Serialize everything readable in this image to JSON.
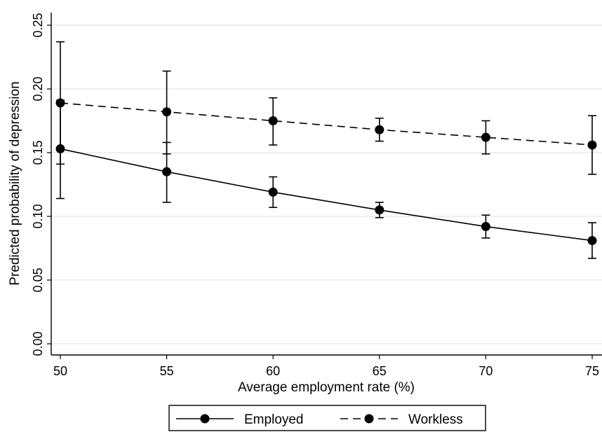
{
  "chart_data": {
    "type": "line",
    "title": "",
    "xlabel": "Average employment rate (%)",
    "ylabel": "Predicted probability of depression",
    "x": [
      50,
      55,
      60,
      65,
      70,
      75
    ],
    "x_ticks": [
      "50",
      "55",
      "60",
      "65",
      "70",
      "75"
    ],
    "y_ticks": [
      "0.00",
      "0.05",
      "0.10",
      "0.15",
      "0.20",
      "0.25"
    ],
    "xlim": [
      49.5,
      75.5
    ],
    "ylim": [
      0,
      0.25
    ],
    "grid": "horizontal",
    "legend_position": "bottom",
    "series": [
      {
        "name": "Employed",
        "line_style": "solid",
        "marker": "filled-circle",
        "color": "#000000",
        "values": [
          0.153,
          0.135,
          0.119,
          0.105,
          0.092,
          0.081
        ],
        "ci_lower": [
          0.114,
          0.111,
          0.107,
          0.099,
          0.083,
          0.067
        ],
        "ci_upper": [
          0.191,
          0.158,
          0.131,
          0.111,
          0.101,
          0.095
        ]
      },
      {
        "name": "Workless",
        "line_style": "dashed",
        "marker": "filled-circle",
        "color": "#000000",
        "values": [
          0.189,
          0.182,
          0.175,
          0.168,
          0.162,
          0.156
        ],
        "ci_lower": [
          0.141,
          0.149,
          0.156,
          0.159,
          0.149,
          0.133
        ],
        "ci_upper": [
          0.237,
          0.214,
          0.193,
          0.177,
          0.175,
          0.179
        ]
      }
    ]
  }
}
